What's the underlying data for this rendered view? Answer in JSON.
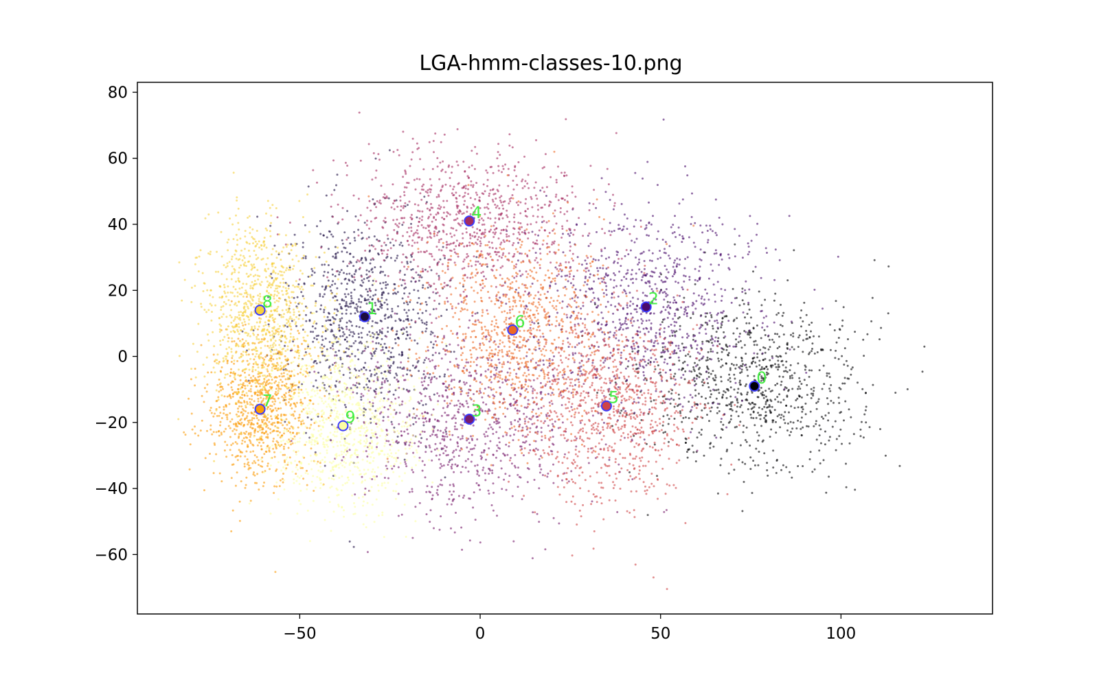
{
  "chart_data": {
    "type": "scatter",
    "title": "LGA-hmm-classes-10.png",
    "xlabel": "",
    "ylabel": "",
    "xlim": [
      -95,
      142
    ],
    "ylim": [
      -78,
      83
    ],
    "xticks": [
      {
        "value": -50,
        "label": "−50"
      },
      {
        "value": 0,
        "label": "0"
      },
      {
        "value": 50,
        "label": "50"
      },
      {
        "value": 100,
        "label": "100"
      }
    ],
    "yticks": [
      {
        "value": -60,
        "label": "−60"
      },
      {
        "value": -40,
        "label": "−40"
      },
      {
        "value": -20,
        "label": "−20"
      },
      {
        "value": 0,
        "label": "0"
      },
      {
        "value": 20,
        "label": "20"
      },
      {
        "value": 40,
        "label": "40"
      },
      {
        "value": 60,
        "label": "60"
      },
      {
        "value": 80,
        "label": "80"
      }
    ],
    "grid": false,
    "legend": "none",
    "colormap": "inferno",
    "centroid_marker_color": "#3b3bff",
    "centroid_label_color": "#44ee44",
    "clusters": [
      {
        "label": "0",
        "center": [
          76,
          -9
        ],
        "spread": [
          15,
          13
        ],
        "color": "#000004"
      },
      {
        "label": "1",
        "center": [
          -32,
          12
        ],
        "spread": [
          11,
          17
        ],
        "color": "#1b0c41"
      },
      {
        "label": "2",
        "center": [
          46,
          15
        ],
        "spread": [
          16,
          15
        ],
        "color": "#4a0c6b"
      },
      {
        "label": "3",
        "center": [
          -3,
          -19
        ],
        "spread": [
          16,
          15
        ],
        "color": "#781c6d"
      },
      {
        "label": "4",
        "center": [
          -3,
          41
        ],
        "spread": [
          17,
          11
        ],
        "color": "#a52c60"
      },
      {
        "label": "5",
        "center": [
          35,
          -15
        ],
        "spread": [
          12,
          15
        ],
        "color": "#cf4446"
      },
      {
        "label": "6",
        "center": [
          9,
          8
        ],
        "spread": [
          13,
          15
        ],
        "color": "#ed6925"
      },
      {
        "label": "7",
        "center": [
          -61,
          -16
        ],
        "spread": [
          7,
          11
        ],
        "color": "#fb9b06"
      },
      {
        "label": "8",
        "center": [
          -61,
          14
        ],
        "spread": [
          8,
          13
        ],
        "color": "#f7d13d"
      },
      {
        "label": "9",
        "center": [
          -38,
          -21
        ],
        "spread": [
          10,
          13
        ],
        "color": "#fcffa4"
      }
    ]
  }
}
